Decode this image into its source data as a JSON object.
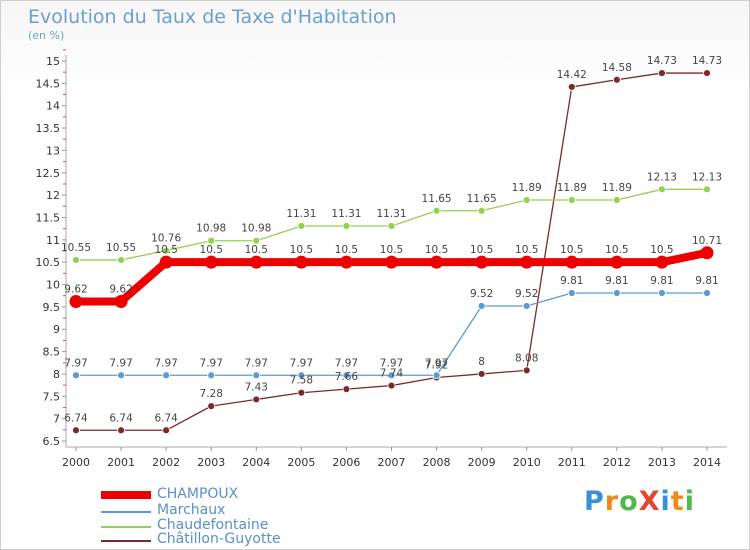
{
  "title": "Evolution du Taux de Taxe d'Habitation",
  "unit_label": "(en %)",
  "logo": {
    "text": "ProXiti",
    "letters": [
      "P",
      "r",
      "o",
      "X",
      "i",
      "t",
      "i"
    ],
    "colors": [
      "#3a8fd6",
      "#ee8a1c",
      "#53b84a",
      "#e4452c",
      "#3a8fd6",
      "#ee8a1c",
      "#53b84a"
    ]
  },
  "chart_data": {
    "type": "line",
    "x": [
      "2000",
      "2001",
      "2002",
      "2003",
      "2004",
      "2005",
      "2006",
      "2007",
      "2008",
      "2009",
      "2010",
      "2011",
      "2012",
      "2013",
      "2014"
    ],
    "ylim": [
      6.5,
      15
    ],
    "yticks": [
      "6.5",
      "7",
      "7.5",
      "8",
      "8.5",
      "9",
      "9.5",
      "10",
      "10.5",
      "11",
      "11.5",
      "12",
      "12.5",
      "13",
      "13.5",
      "14",
      "14.5",
      "15"
    ],
    "grid": false,
    "legend_position": "bottom-left",
    "series": [
      {
        "name": "CHAMPOUX",
        "color": "#ee0000",
        "line_width": 8,
        "marker_radius": 6.5,
        "values": [
          9.62,
          9.62,
          10.5,
          10.5,
          10.5,
          10.5,
          10.5,
          10.5,
          10.5,
          10.5,
          10.5,
          10.5,
          10.5,
          10.5,
          10.71
        ],
        "labels": [
          "9.62",
          "9.62",
          "10.5",
          "10.5",
          "10.5",
          "10.5",
          "10.5",
          "10.5",
          "10.5",
          "10.5",
          "10.5",
          "10.5",
          "10.5",
          "10.5",
          "10.71"
        ]
      },
      {
        "name": "Marchaux",
        "color": "#5b9bd5",
        "line_width": 1.3,
        "marker_radius": 3.5,
        "values": [
          7.97,
          7.97,
          7.97,
          7.97,
          7.97,
          7.97,
          7.97,
          7.97,
          7.97,
          9.52,
          9.52,
          9.81,
          9.81,
          9.81,
          9.81
        ],
        "labels": [
          "7.97",
          "7.97",
          "7.97",
          "7.97",
          "7.97",
          "7.97",
          "7.97",
          "7.97",
          "7.97",
          "9.52",
          "9.52",
          "9.81",
          "9.81",
          "9.81",
          "9.81"
        ]
      },
      {
        "name": "Chaudefontaine",
        "color": "#92d050",
        "line_width": 1.3,
        "marker_radius": 3.5,
        "values": [
          10.55,
          10.55,
          10.76,
          10.98,
          10.98,
          11.31,
          11.31,
          11.31,
          11.65,
          11.65,
          11.89,
          11.89,
          11.89,
          12.13,
          12.13
        ],
        "labels": [
          "10.55",
          "10.55",
          "10.76",
          "10.98",
          "10.98",
          "11.31",
          "11.31",
          "11.31",
          "11.65",
          "11.65",
          "11.89",
          "11.89",
          "11.89",
          "12.13",
          "12.13"
        ]
      },
      {
        "name": "Châtillon-Guyotte",
        "color": "#7a2a2a",
        "line_width": 1.3,
        "marker_radius": 3.5,
        "values": [
          6.74,
          6.74,
          6.74,
          7.28,
          7.43,
          7.58,
          7.66,
          7.74,
          7.92,
          8,
          8.08,
          14.42,
          14.58,
          14.73,
          14.73
        ],
        "labels": [
          "6.74",
          "6.74",
          "6.74",
          "7.28",
          "7.43",
          "7.58",
          "7.66",
          "7.74",
          "7.92",
          "8",
          "8.08",
          "14.42",
          "14.58",
          "14.73",
          "14.73"
        ]
      }
    ]
  }
}
